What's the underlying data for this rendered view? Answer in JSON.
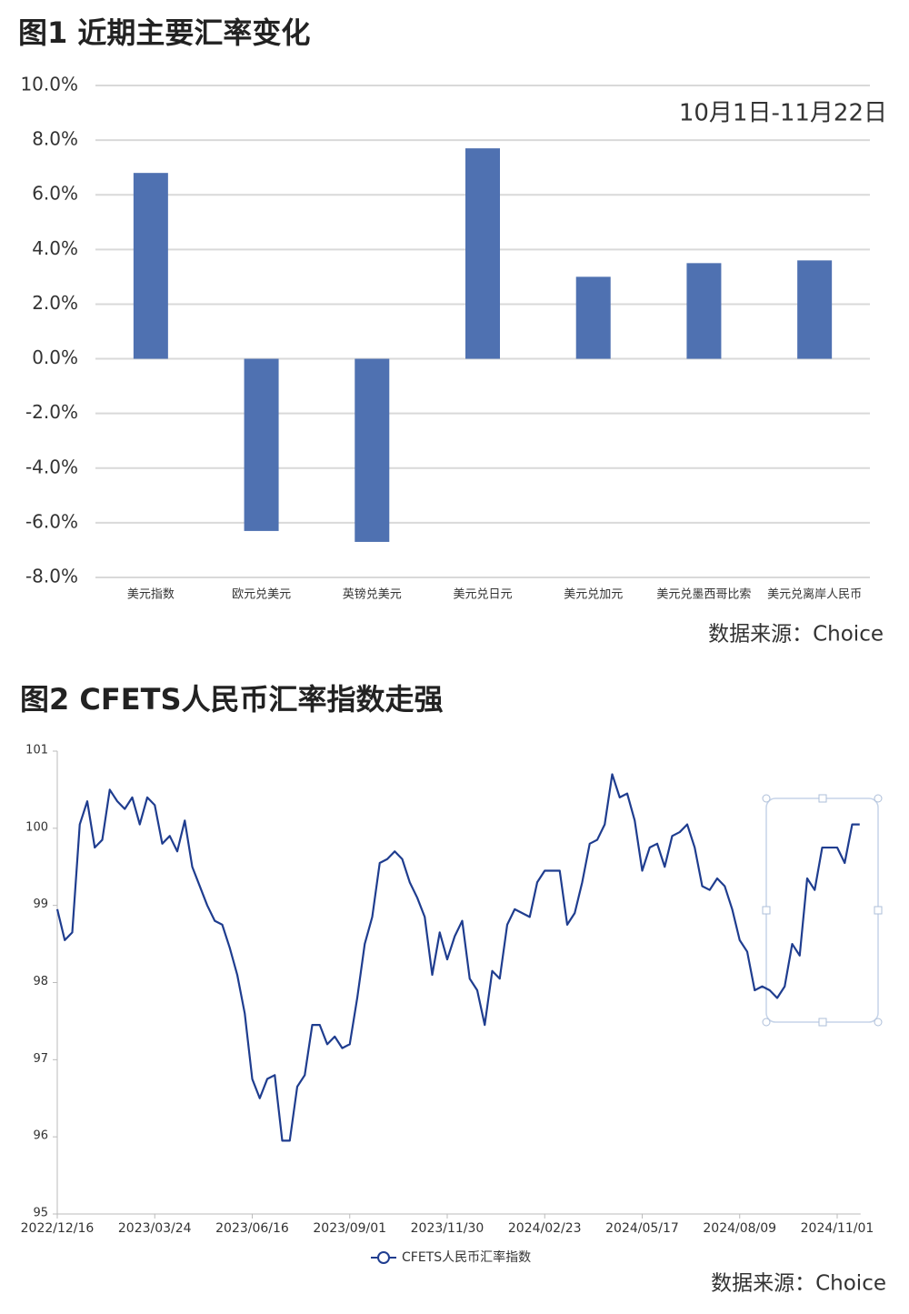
{
  "chart_data": [
    {
      "type": "bar",
      "title": "图1  近期主要汇率变化",
      "annotation": "10月1日-11月22日",
      "source": "数据来源：Choice",
      "categories": [
        "美元指数",
        "欧元兑美元",
        "英镑兑美元",
        "美元兑日元",
        "美元兑加元",
        "美元兑墨西哥比索",
        "美元兑离岸人民币"
      ],
      "values": [
        6.8,
        -6.3,
        -6.7,
        7.7,
        3.0,
        3.5,
        3.6
      ],
      "color": "#4f71b1",
      "ylim": [
        -8,
        10
      ],
      "yticks": [
        {
          "value": -8,
          "label": "-8.0%"
        },
        {
          "value": -6,
          "label": "-6.0%"
        },
        {
          "value": -4,
          "label": "-4.0%"
        },
        {
          "value": -2,
          "label": "-2.0%"
        },
        {
          "value": 0,
          "label": "0.0%"
        },
        {
          "value": 2,
          "label": "2.0%"
        },
        {
          "value": 4,
          "label": "4.0%"
        },
        {
          "value": 6,
          "label": "6.0%"
        },
        {
          "value": 8,
          "label": "8.0%"
        },
        {
          "value": 10,
          "label": "10.0%"
        }
      ],
      "grid": true
    },
    {
      "type": "line",
      "title": "图2  CFETS人民币汇率指数走强",
      "source": "数据来源：Choice",
      "categories": [
        "2022/12/16",
        null,
        null,
        null,
        null,
        null,
        null,
        null,
        null,
        null,
        null,
        null,
        null,
        "2023/03/24",
        null,
        null,
        null,
        null,
        null,
        null,
        null,
        null,
        null,
        null,
        null,
        null,
        "2023/06/16",
        null,
        null,
        null,
        null,
        null,
        null,
        null,
        null,
        null,
        null,
        null,
        null,
        "2023/09/01",
        null,
        null,
        null,
        null,
        null,
        null,
        null,
        null,
        null,
        null,
        null,
        null,
        "2023/11/30",
        null,
        null,
        null,
        null,
        null,
        null,
        null,
        null,
        null,
        null,
        null,
        null,
        "2024/02/23",
        null,
        null,
        null,
        null,
        null,
        null,
        null,
        null,
        null,
        null,
        null,
        null,
        "2024/05/17",
        null,
        null,
        null,
        null,
        null,
        null,
        null,
        null,
        null,
        null,
        null,
        null,
        "2024/08/09",
        null,
        null,
        null,
        null,
        null,
        null,
        null,
        null,
        null,
        null,
        null,
        null,
        "2024/11/01",
        null,
        null,
        null
      ],
      "series": [
        {
          "name": "CFETS人民币汇率指数",
          "color": "#1f3d8f",
          "values": [
            98.95,
            98.55,
            98.65,
            100.05,
            100.35,
            99.75,
            99.85,
            100.5,
            100.35,
            100.25,
            100.4,
            100.05,
            100.4,
            100.3,
            99.8,
            99.9,
            99.7,
            100.1,
            99.5,
            99.25,
            99.0,
            98.8,
            98.75,
            98.45,
            98.1,
            97.6,
            96.75,
            96.5,
            96.75,
            96.8,
            95.95,
            95.95,
            96.65,
            96.8,
            97.45,
            97.45,
            97.2,
            97.3,
            97.15,
            97.2,
            97.8,
            98.5,
            98.85,
            99.55,
            99.6,
            99.7,
            99.6,
            99.3,
            99.1,
            98.85,
            98.1,
            98.65,
            98.3,
            98.6,
            98.8,
            98.05,
            97.9,
            97.45,
            98.15,
            98.05,
            98.75,
            98.95,
            98.9,
            98.85,
            99.3,
            99.45,
            99.45,
            99.45,
            98.75,
            98.9,
            99.3,
            99.8,
            99.85,
            100.05,
            100.7,
            100.4,
            100.45,
            100.1,
            99.45,
            99.75,
            99.8,
            99.5,
            99.9,
            99.95,
            100.05,
            99.75,
            99.25,
            99.2,
            99.35,
            99.25,
            98.95,
            98.55,
            98.4,
            97.9,
            97.95,
            97.9,
            97.8,
            97.95,
            98.5,
            98.35,
            99.35,
            99.2,
            99.75,
            99.75,
            99.75,
            99.55,
            100.05,
            100.05
          ]
        }
      ],
      "ylim": [
        95,
        101
      ],
      "yticks": [
        95,
        96,
        97,
        98,
        99,
        100,
        101
      ]
    }
  ]
}
